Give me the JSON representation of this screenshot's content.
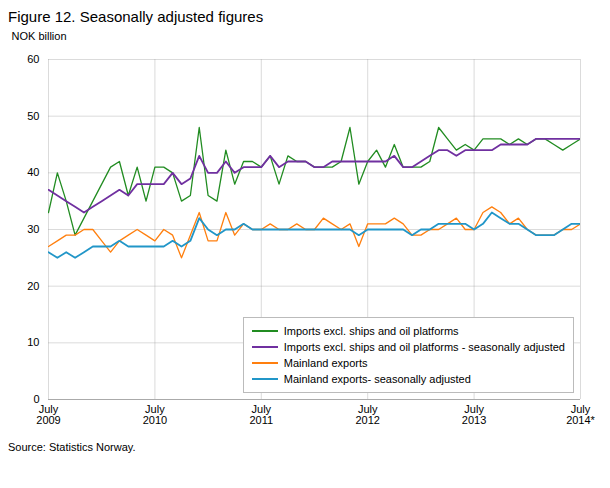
{
  "chart_data": {
    "type": "line",
    "title": "Figure 12. Seasonally adjusted figures",
    "ylabel": "NOK billion",
    "source": "Source: Statistics Norway.",
    "categories": [
      "July\n2009",
      null,
      null,
      null,
      null,
      null,
      null,
      null,
      null,
      null,
      null,
      null,
      "July\n2010",
      null,
      null,
      null,
      null,
      null,
      null,
      null,
      null,
      null,
      null,
      null,
      "July\n2011",
      null,
      null,
      null,
      null,
      null,
      null,
      null,
      null,
      null,
      null,
      null,
      "July\n2012",
      null,
      null,
      null,
      null,
      null,
      null,
      null,
      null,
      null,
      null,
      null,
      "July\n2013",
      null,
      null,
      null,
      null,
      null,
      null,
      null,
      null,
      null,
      null,
      null,
      "July\n2014*"
    ],
    "ylim": [
      0,
      60
    ],
    "yticks": [
      0,
      10,
      20,
      30,
      40,
      50,
      60
    ],
    "grid": true,
    "legend": "lower right",
    "series": [
      {
        "name": "Imports excl. ships and oil platforms",
        "color": "#218c21",
        "values": [
          33,
          40,
          35,
          29,
          32,
          35,
          38,
          41,
          42,
          36,
          41,
          35,
          41,
          41,
          40,
          35,
          36,
          48,
          36,
          35,
          44,
          38,
          42,
          42,
          41,
          43,
          38,
          43,
          42,
          42,
          41,
          41,
          41,
          42,
          48,
          38,
          42,
          44,
          41,
          45,
          41,
          41,
          41,
          42,
          48,
          46,
          44,
          45,
          44,
          46,
          46,
          46,
          45,
          46,
          45,
          46,
          46,
          45,
          44,
          45,
          46
        ]
      },
      {
        "name": "Imports excl. ships and oil platforms - seasonally adjusted",
        "color": "#7030a0",
        "values": [
          37,
          36,
          35,
          34,
          33,
          34,
          35,
          36,
          37,
          36,
          38,
          38,
          38,
          38,
          40,
          38,
          39,
          43,
          40,
          40,
          42,
          40,
          41,
          41,
          41,
          43,
          41,
          42,
          42,
          42,
          41,
          41,
          42,
          42,
          42,
          42,
          42,
          42,
          42,
          43,
          41,
          41,
          42,
          43,
          44,
          44,
          43,
          44,
          44,
          44,
          44,
          45,
          45,
          45,
          45,
          46,
          46,
          46,
          46,
          46,
          46
        ]
      },
      {
        "name": "Mainland exports",
        "color": "#ff7f0e",
        "values": [
          27,
          28,
          29,
          29,
          30,
          30,
          28,
          26,
          28,
          29,
          30,
          29,
          28,
          30,
          29,
          25,
          29,
          33,
          28,
          28,
          33,
          29,
          31,
          30,
          30,
          31,
          30,
          30,
          31,
          30,
          30,
          32,
          31,
          30,
          31,
          27,
          31,
          31,
          31,
          32,
          31,
          29,
          29,
          30,
          30,
          31,
          32,
          30,
          30,
          33,
          34,
          33,
          31,
          32,
          30,
          29,
          29,
          29,
          30,
          30,
          31
        ]
      },
      {
        "name": "Mainland exports- seasonally adjusted",
        "color": "#2196c8",
        "values": [
          26,
          25,
          26,
          25,
          26,
          27,
          27,
          27,
          28,
          27,
          27,
          27,
          27,
          27,
          28,
          27,
          28,
          32,
          30,
          29,
          30,
          30,
          31,
          30,
          30,
          30,
          30,
          30,
          30,
          30,
          30,
          30,
          30,
          30,
          30,
          29,
          30,
          30,
          30,
          30,
          30,
          29,
          30,
          30,
          31,
          31,
          31,
          31,
          30,
          31,
          33,
          32,
          31,
          31,
          30,
          29,
          29,
          29,
          30,
          31,
          31
        ]
      }
    ]
  }
}
